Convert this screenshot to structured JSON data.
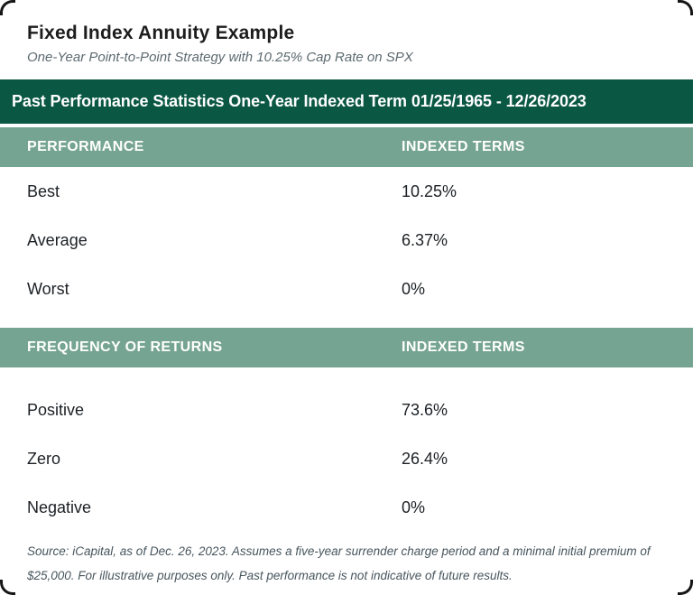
{
  "header": {
    "title": "Fixed Index Annuity Example",
    "subtitle": "One-Year Point-to-Point Strategy with 10.25% Cap Rate on SPX"
  },
  "banner": {
    "text": "Past Performance Statistics One-Year Indexed Term 01/25/1965 - 12/26/2023"
  },
  "sections": [
    {
      "header": {
        "col1": "PERFORMANCE",
        "col2": "INDEXED TERMS"
      },
      "rows": [
        {
          "label": "Best",
          "value": "10.25%"
        },
        {
          "label": "Average",
          "value": "6.37%"
        },
        {
          "label": "Worst",
          "value": "0%"
        }
      ]
    },
    {
      "header": {
        "col1": "FREQUENCY OF RETURNS",
        "col2": "INDEXED TERMS"
      },
      "rows": [
        {
          "label": "Positive",
          "value": "73.6%"
        },
        {
          "label": "Zero",
          "value": "26.4%"
        },
        {
          "label": "Negative",
          "value": "0%"
        }
      ]
    }
  ],
  "footnote": "Source: iCapital, as of Dec. 26, 2023. Assumes a five-year surrender charge period and a minimal initial premium of $25,000. For illustrative purposes only. Past performance is not indicative of future results.",
  "colors": {
    "banner_green": "#0A5743",
    "header_sage": "#76A492",
    "title_text": "#1D1D1D",
    "subtitle_text": "#5C6A70",
    "row_text": "#1C2024",
    "footnote_text": "#47555D",
    "corner_stroke": "#151515",
    "background": "#FFFFFF"
  }
}
